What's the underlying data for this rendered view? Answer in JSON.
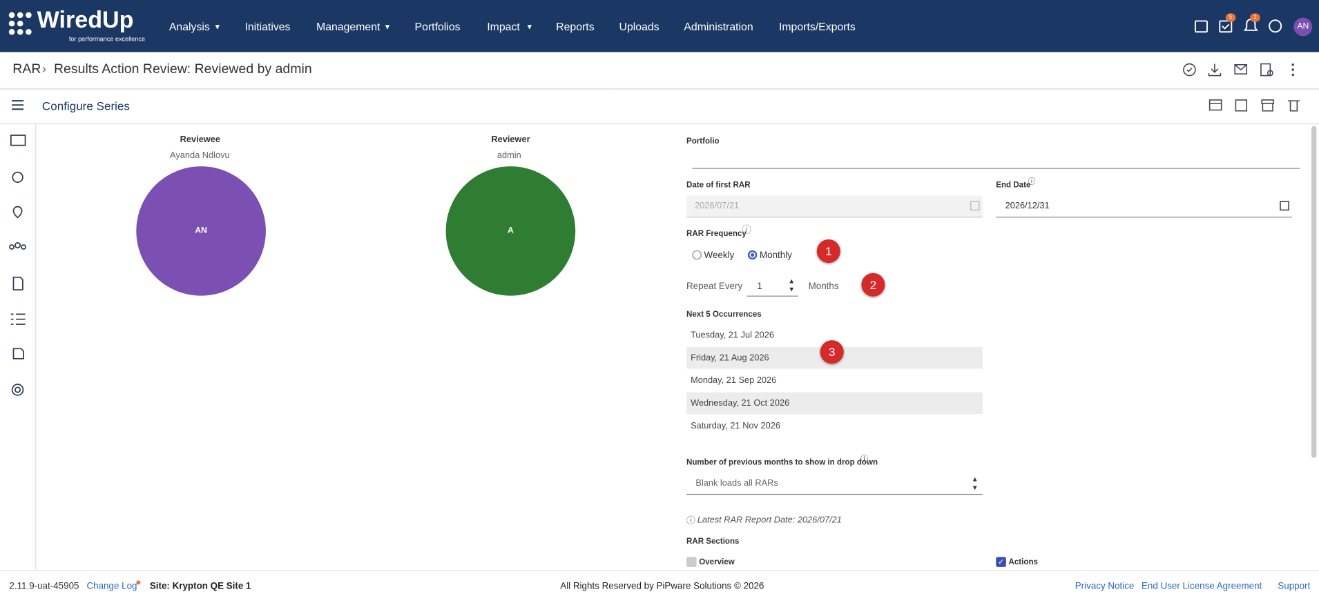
{
  "header": {
    "logo": "WiredUp",
    "tagline": "for performance excellence",
    "nav": [
      "Analysis",
      "Initiatives",
      "Management",
      "Portfolios",
      "Impact",
      "Reports",
      "Uploads",
      "Administration",
      "Imports/Exports"
    ],
    "badges": [
      "5",
      "1"
    ],
    "avatar": "AN"
  },
  "breadcrumb": {
    "root": "RAR",
    "title": "Results Action Review: Reviewed by admin"
  },
  "panel": {
    "title": "Configure Series"
  },
  "reviewee": {
    "label": "Reviewee",
    "name": "Ayanda Ndlovu",
    "initials": "AN"
  },
  "reviewer": {
    "label": "Reviewer",
    "name": "admin",
    "initials": "A"
  },
  "form": {
    "portfolio_label": "Portfolio",
    "first_rar_label": "Date of first RAR",
    "first_rar": "2026/07/21",
    "end_date_label": "End Date",
    "end_date": "2026/12/31",
    "frequency_label": "RAR Frequency",
    "options": [
      "Weekly",
      "Monthly"
    ],
    "repeat_label": "Repeat Every",
    "repeat_value": "1",
    "repeat_unit": "Months",
    "occurrences_label": "Next 5 Occurrences",
    "occurrences": [
      "Tuesday, 21 Jul 2026",
      "Friday, 21 Aug 2026",
      "Monday, 21 Sep 2026",
      "Wednesday, 21 Oct 2026",
      "Saturday, 21 Nov 2026"
    ],
    "months_label": "Number of previous months to show in drop down",
    "months_placeholder": "Blank loads all RARs",
    "latest": "Latest RAR Report Date: 2026/07/21",
    "sections_label": "RAR Sections",
    "sections": [
      "Overview",
      "Actions"
    ]
  },
  "callouts": [
    "1",
    "2",
    "3"
  ],
  "footer": {
    "version": "2.11.9-uat-45905",
    "changelog": "Change Log",
    "site": "Site: Krypton QE Site 1",
    "rights": "All Rights Reserved by PiPware Solutions © 2026",
    "links": [
      "Privacy Notice",
      "End User License Agreement",
      "Support"
    ]
  }
}
